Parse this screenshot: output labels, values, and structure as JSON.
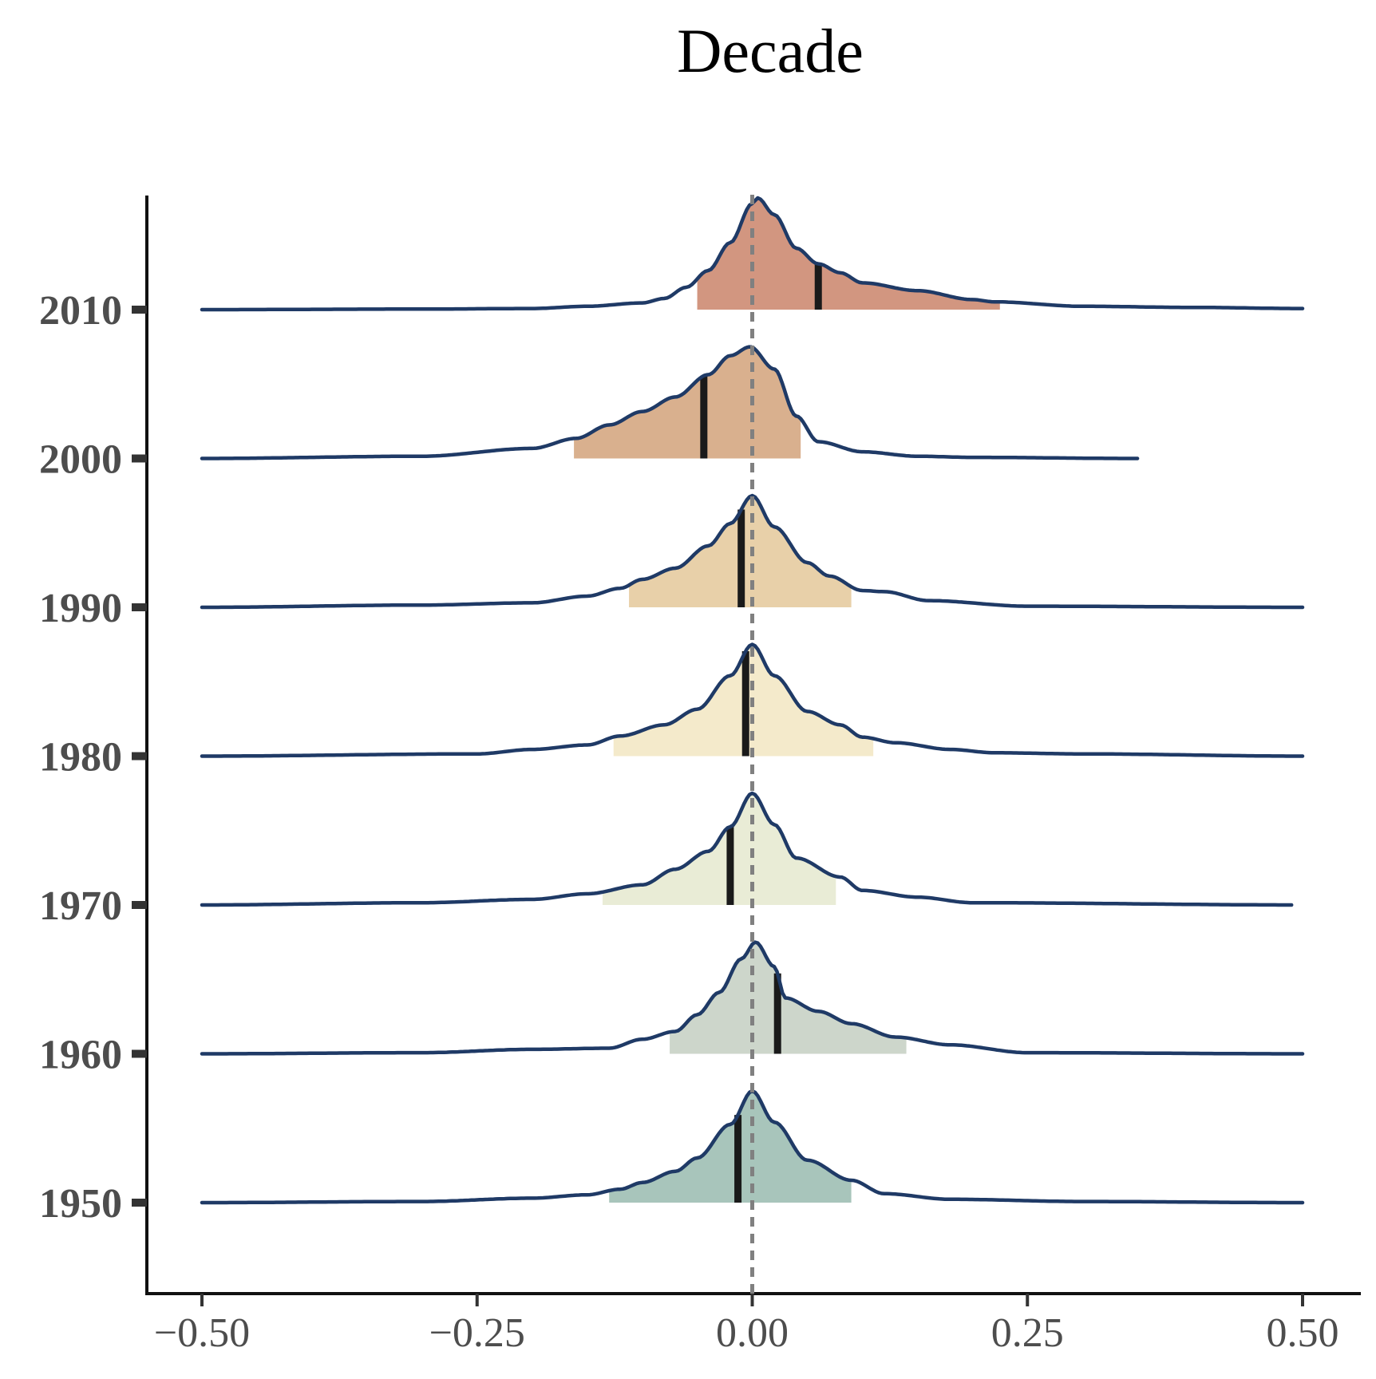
{
  "chart_data": {
    "type": "ridgeline",
    "title": "Decade",
    "xlabel": "",
    "ylabel": "",
    "xlim": [
      -0.5,
      0.5
    ],
    "x_ticks": [
      "−0.50",
      "−0.25",
      "0.00",
      "0.25",
      "0.50"
    ],
    "x_tick_values": [
      -0.5,
      -0.25,
      0,
      0.25,
      0.5
    ],
    "reference_line": 0,
    "grid": false,
    "legend": "none",
    "line_color": "#1f3a66",
    "series": [
      {
        "name": "2010",
        "color": "#d29680",
        "x_max": 0.5,
        "marker": 0.06,
        "interval": [
          -0.05,
          0.225
        ],
        "peak_x": 0.003,
        "density": [
          [
            -0.5,
            0
          ],
          [
            -0.3,
            0.005
          ],
          [
            -0.2,
            0.01
          ],
          [
            -0.15,
            0.03
          ],
          [
            -0.1,
            0.06
          ],
          [
            -0.08,
            0.1
          ],
          [
            -0.06,
            0.2
          ],
          [
            -0.04,
            0.35
          ],
          [
            -0.02,
            0.6
          ],
          [
            0,
            0.95
          ],
          [
            0.005,
            1.0
          ],
          [
            0.02,
            0.85
          ],
          [
            0.04,
            0.55
          ],
          [
            0.06,
            0.41
          ],
          [
            0.08,
            0.33
          ],
          [
            0.1,
            0.24
          ],
          [
            0.15,
            0.17
          ],
          [
            0.2,
            0.09
          ],
          [
            0.22,
            0.07
          ],
          [
            0.3,
            0.03
          ],
          [
            0.4,
            0.02
          ],
          [
            0.5,
            0.01
          ]
        ]
      },
      {
        "name": "2000",
        "color": "#d9b08e",
        "x_max": 0.35,
        "marker": -0.044,
        "interval": [
          -0.162,
          0.044
        ],
        "peak_x": -0.002,
        "density": [
          [
            -0.5,
            0
          ],
          [
            -0.3,
            0.02
          ],
          [
            -0.2,
            0.09
          ],
          [
            -0.16,
            0.18
          ],
          [
            -0.13,
            0.3
          ],
          [
            -0.1,
            0.42
          ],
          [
            -0.07,
            0.55
          ],
          [
            -0.04,
            0.75
          ],
          [
            -0.02,
            0.92
          ],
          [
            -0.002,
            1.0
          ],
          [
            0.02,
            0.8
          ],
          [
            0.04,
            0.38
          ],
          [
            0.06,
            0.15
          ],
          [
            0.1,
            0.06
          ],
          [
            0.15,
            0.02
          ],
          [
            0.2,
            0.01
          ],
          [
            0.35,
            0.0
          ]
        ]
      },
      {
        "name": "1990",
        "color": "#e8d0a9",
        "x_max": 0.5,
        "marker": -0.01,
        "interval": [
          -0.112,
          0.09
        ],
        "peak_x": 0.0,
        "density": [
          [
            -0.5,
            0
          ],
          [
            -0.3,
            0.02
          ],
          [
            -0.2,
            0.04
          ],
          [
            -0.15,
            0.1
          ],
          [
            -0.12,
            0.17
          ],
          [
            -0.1,
            0.25
          ],
          [
            -0.07,
            0.35
          ],
          [
            -0.04,
            0.55
          ],
          [
            -0.02,
            0.75
          ],
          [
            0,
            1.0
          ],
          [
            0.02,
            0.72
          ],
          [
            0.05,
            0.4
          ],
          [
            0.07,
            0.28
          ],
          [
            0.1,
            0.15
          ],
          [
            0.12,
            0.14
          ],
          [
            0.16,
            0.06
          ],
          [
            0.25,
            0.01
          ],
          [
            0.5,
            0.0
          ]
        ]
      },
      {
        "name": "1980",
        "color": "#f4eacb",
        "x_max": 0.5,
        "marker": -0.006,
        "interval": [
          -0.126,
          0.11
        ],
        "peak_x": 0.0,
        "density": [
          [
            -0.5,
            0
          ],
          [
            -0.25,
            0.02
          ],
          [
            -0.2,
            0.06
          ],
          [
            -0.15,
            0.1
          ],
          [
            -0.12,
            0.18
          ],
          [
            -0.08,
            0.28
          ],
          [
            -0.05,
            0.42
          ],
          [
            -0.02,
            0.72
          ],
          [
            0,
            1.0
          ],
          [
            0.02,
            0.72
          ],
          [
            0.05,
            0.4
          ],
          [
            0.08,
            0.28
          ],
          [
            0.1,
            0.17
          ],
          [
            0.13,
            0.12
          ],
          [
            0.18,
            0.06
          ],
          [
            0.22,
            0.03
          ],
          [
            0.3,
            0.02
          ],
          [
            0.5,
            0.0
          ]
        ]
      },
      {
        "name": "1970",
        "color": "#e9ecd6",
        "x_max": 0.49,
        "marker": -0.02,
        "interval": [
          -0.136,
          0.076
        ],
        "peak_x": 0.0,
        "density": [
          [
            -0.5,
            0
          ],
          [
            -0.3,
            0.02
          ],
          [
            -0.2,
            0.05
          ],
          [
            -0.15,
            0.1
          ],
          [
            -0.1,
            0.18
          ],
          [
            -0.07,
            0.32
          ],
          [
            -0.04,
            0.48
          ],
          [
            -0.02,
            0.7
          ],
          [
            0,
            1.0
          ],
          [
            0.02,
            0.72
          ],
          [
            0.04,
            0.42
          ],
          [
            0.08,
            0.25
          ],
          [
            0.1,
            0.13
          ],
          [
            0.15,
            0.07
          ],
          [
            0.2,
            0.02
          ],
          [
            0.5,
            0.0
          ]
        ]
      },
      {
        "name": "1960",
        "color": "#cdd6cb",
        "x_max": 0.5,
        "marker": 0.023,
        "interval": [
          -0.075,
          0.14
        ],
        "peak_x": 0.003,
        "density": [
          [
            -0.5,
            0
          ],
          [
            -0.3,
            0.01
          ],
          [
            -0.2,
            0.04
          ],
          [
            -0.13,
            0.05
          ],
          [
            -0.1,
            0.13
          ],
          [
            -0.07,
            0.2
          ],
          [
            -0.05,
            0.35
          ],
          [
            -0.03,
            0.55
          ],
          [
            -0.01,
            0.85
          ],
          [
            0.003,
            1.0
          ],
          [
            0.02,
            0.78
          ],
          [
            0.03,
            0.5
          ],
          [
            0.06,
            0.38
          ],
          [
            0.09,
            0.27
          ],
          [
            0.13,
            0.15
          ],
          [
            0.18,
            0.08
          ],
          [
            0.25,
            0.01
          ],
          [
            0.5,
            0.0
          ]
        ]
      },
      {
        "name": "1950",
        "color": "#a8c5bb",
        "x_max": 0.5,
        "marker": -0.013,
        "interval": [
          -0.13,
          0.09
        ],
        "peak_x": 0.0,
        "density": [
          [
            -0.5,
            0
          ],
          [
            -0.3,
            0.01
          ],
          [
            -0.2,
            0.04
          ],
          [
            -0.15,
            0.07
          ],
          [
            -0.12,
            0.12
          ],
          [
            -0.1,
            0.18
          ],
          [
            -0.07,
            0.28
          ],
          [
            -0.05,
            0.4
          ],
          [
            -0.02,
            0.7
          ],
          [
            0,
            1.0
          ],
          [
            0.02,
            0.72
          ],
          [
            0.05,
            0.38
          ],
          [
            0.09,
            0.2
          ],
          [
            0.12,
            0.08
          ],
          [
            0.18,
            0.03
          ],
          [
            0.3,
            0.01
          ],
          [
            0.5,
            0.0
          ]
        ]
      }
    ]
  }
}
